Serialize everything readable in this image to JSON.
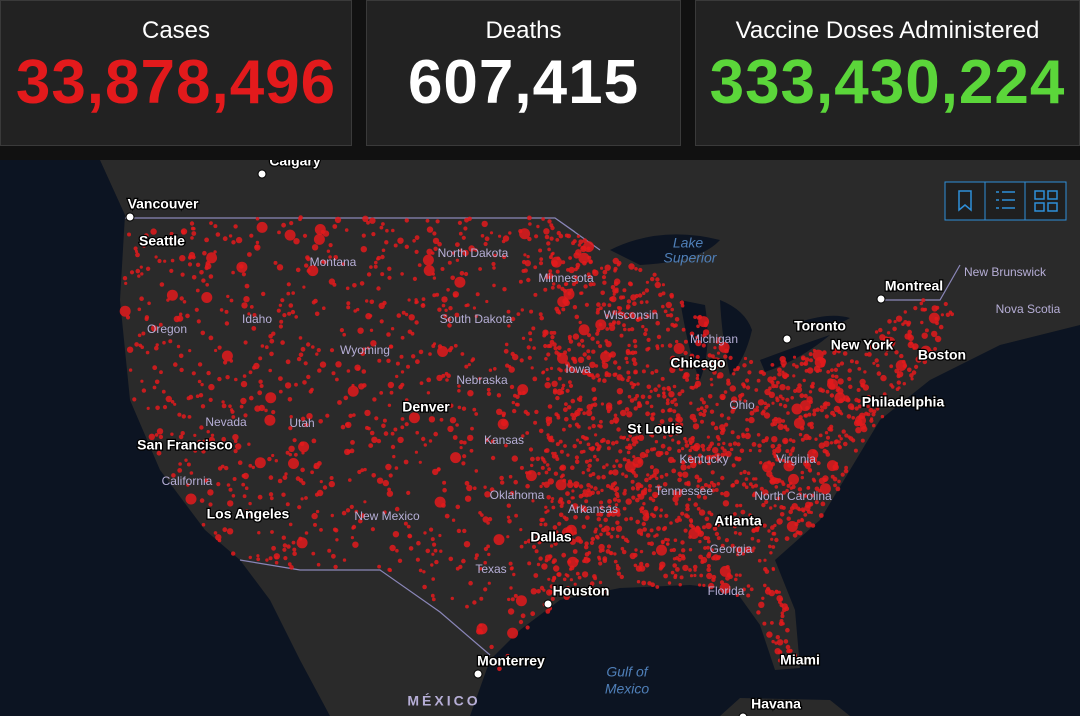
{
  "cards": [
    {
      "title": "Cases",
      "value": "33,878,496",
      "color": "#e31a1c"
    },
    {
      "title": "Deaths",
      "value": "607,415",
      "color": "#ffffff"
    },
    {
      "title": "Vaccine Doses Administered",
      "value": "333,430,224",
      "color": "#5bd63a"
    }
  ],
  "map": {
    "cities": [
      "Calgary",
      "Vancouver",
      "Seattle",
      "Toronto",
      "Montreal",
      "Chicago",
      "New York",
      "Boston",
      "Denver",
      "Philadelphia",
      "St Louis",
      "San Francisco",
      "Los Angeles",
      "Atlanta",
      "Dallas",
      "Houston",
      "Monterrey",
      "Miami",
      "Havana"
    ],
    "regions": [
      "Montana",
      "North Dakota",
      "Minnesota",
      "Idaho",
      "Oregon",
      "South Dakota",
      "Wisconsin",
      "Michigan",
      "New Brunswick",
      "Nova Scotia",
      "Wyoming",
      "Iowa",
      "Nebraska",
      "Nevada",
      "Utah",
      "Ohio",
      "Kansas",
      "Kentucky",
      "Virginia",
      "California",
      "Oklahoma",
      "Tennessee",
      "North Carolina",
      "Arkansas",
      "New Mexico",
      "Georgia",
      "Texas",
      "Florida"
    ],
    "water": [
      "Lake",
      "Superior",
      "Gulf of",
      "Mexico"
    ],
    "country": "MÉXICO"
  }
}
